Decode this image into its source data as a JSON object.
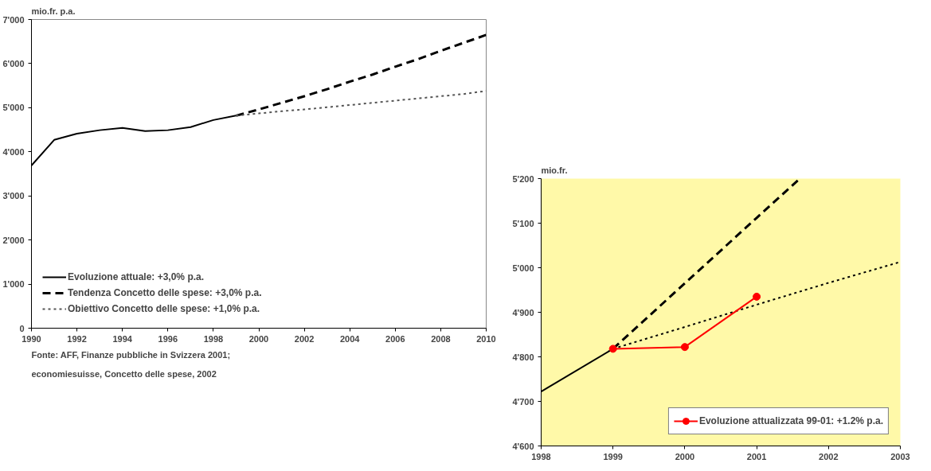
{
  "chart_data": [
    {
      "type": "line",
      "ylabel": "mio.fr. p.a.",
      "xlim": [
        1990,
        2010
      ],
      "xticks": [
        1990,
        1992,
        1994,
        1996,
        1998,
        2000,
        2002,
        2004,
        2006,
        2008,
        2010
      ],
      "ylim": [
        0,
        7000
      ],
      "yticks": [
        {
          "value": 0,
          "label": "0"
        },
        {
          "value": 1000,
          "label": "1'000"
        },
        {
          "value": 2000,
          "label": "2'000"
        },
        {
          "value": 3000,
          "label": "3'000"
        },
        {
          "value": 4000,
          "label": "4'000"
        },
        {
          "value": 5000,
          "label": "5'000"
        },
        {
          "value": 6000,
          "label": "6'000"
        },
        {
          "value": 7000,
          "label": "7'000"
        }
      ],
      "grid": false,
      "legend": "bottom left",
      "series": [
        {
          "name": "Evoluzione attuale: +3,0% p.a.",
          "color": "#000000",
          "line_style": "solid",
          "x": [
            1990,
            1991,
            1992,
            1993,
            1994,
            1995,
            1996,
            1997,
            1998,
            1999
          ],
          "values": [
            3690,
            4270,
            4410,
            4490,
            4540,
            4470,
            4490,
            4560,
            4720,
            4820
          ]
        },
        {
          "name": "Tendenza Concetto delle spese: +3,0% p.a.",
          "color": "#000000",
          "line_style": "dashed",
          "x": [
            1999,
            2000,
            2001,
            2002,
            2003,
            2004,
            2005,
            2006,
            2007,
            2008,
            2009,
            2010
          ],
          "values": [
            4820,
            4960,
            5110,
            5260,
            5420,
            5590,
            5750,
            5930,
            6100,
            6290,
            6470,
            6650
          ]
        },
        {
          "name": "Obiettivo Concetto delle spese: +1,0% p.a.",
          "color": "#555555",
          "line_style": "dotted",
          "x": [
            1999,
            2000,
            2001,
            2002,
            2003,
            2004,
            2005,
            2006,
            2007,
            2008,
            2009,
            2010
          ],
          "values": [
            4820,
            4870,
            4920,
            4960,
            5010,
            5060,
            5110,
            5160,
            5210,
            5260,
            5310,
            5380
          ]
        }
      ],
      "annotations": [
        "Fonte: AFF, Finanze pubbliche  in Svizzera 2001;",
        "economiesuisse, Concetto delle spese, 2002"
      ]
    },
    {
      "type": "line",
      "ylabel": "mio.fr.",
      "xlim": [
        1998,
        2003
      ],
      "xticks": [
        1998,
        1999,
        2000,
        2001,
        2002,
        2003
      ],
      "ylim": [
        4600,
        5200
      ],
      "yticks": [
        {
          "value": 4600,
          "label": "4'600"
        },
        {
          "value": 4700,
          "label": "4'700"
        },
        {
          "value": 4800,
          "label": "4'800"
        },
        {
          "value": 4900,
          "label": "4'900"
        },
        {
          "value": 5000,
          "label": "5'000"
        },
        {
          "value": 5100,
          "label": "5'100"
        },
        {
          "value": 5200,
          "label": "5'200"
        }
      ],
      "grid": false,
      "legend": "bottom right",
      "series": [
        {
          "color": "#000000",
          "line_style": "solid",
          "x": [
            1998,
            1999
          ],
          "values": [
            4722,
            4818
          ]
        },
        {
          "color": "#000000",
          "line_style": "dashed",
          "x": [
            1999,
            2000,
            2001,
            2001.6
          ],
          "values": [
            4818,
            4965,
            5112,
            5200
          ]
        },
        {
          "color": "#000000",
          "line_style": "dotted",
          "x": [
            1999,
            2000,
            2001,
            2002,
            2003
          ],
          "values": [
            4818,
            4867,
            4917,
            4966,
            5013
          ]
        },
        {
          "name": "Evoluzione attualizzata 99-01: +1.2% p.a.",
          "color": "#ff0000",
          "line_style": "solid",
          "marker": "circle",
          "x": [
            1999,
            2000,
            2001
          ],
          "values": [
            4818,
            4822,
            4935
          ]
        }
      ]
    }
  ]
}
